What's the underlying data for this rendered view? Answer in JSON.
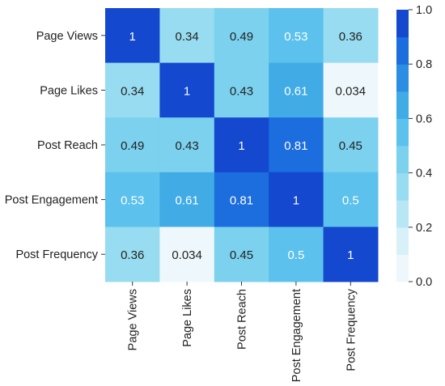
{
  "chart_data": {
    "type": "heatmap",
    "rows": [
      "Page Views",
      "Page Likes",
      "Post Reach",
      "Post Engagement",
      "Post Frequency"
    ],
    "columns": [
      "Page Views",
      "Page Likes",
      "Post Reach",
      "Post Engagement",
      "Post Frequency"
    ],
    "values": [
      [
        1,
        0.34,
        0.49,
        0.53,
        0.36
      ],
      [
        0.34,
        1,
        0.43,
        0.61,
        0.034
      ],
      [
        0.49,
        0.43,
        1,
        0.81,
        0.45
      ],
      [
        0.53,
        0.61,
        0.81,
        1,
        0.5
      ],
      [
        0.36,
        0.034,
        0.45,
        0.5,
        1
      ]
    ],
    "value_labels": [
      [
        "1",
        "0.34",
        "0.49",
        "0.53",
        "0.36"
      ],
      [
        "0.34",
        "1",
        "0.43",
        "0.61",
        "0.034"
      ],
      [
        "0.49",
        "0.43",
        "1",
        "0.81",
        "0.45"
      ],
      [
        "0.53",
        "0.61",
        "0.81",
        "1",
        "0.5"
      ],
      [
        "0.36",
        "0.034",
        "0.45",
        "0.5",
        "1"
      ]
    ],
    "colorbar": {
      "range": [
        0,
        1
      ],
      "ticks": [
        "0.0",
        "0.2",
        "0.4",
        "0.6",
        "0.8",
        "1.0"
      ],
      "palette": [
        "#eef8fc",
        "#d8f0f8",
        "#b8e6f5",
        "#97dcf0",
        "#7bd1ee",
        "#5cc1ec",
        "#41abe6",
        "#2b8ee2",
        "#1c6ddd",
        "#1348cf"
      ]
    },
    "text_colors": {
      "dark": "#222222",
      "light": "#ffffff"
    }
  }
}
